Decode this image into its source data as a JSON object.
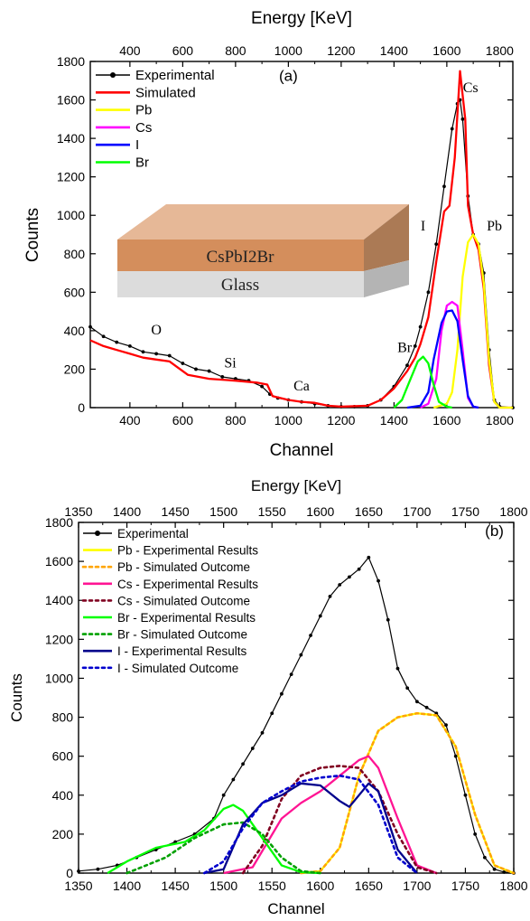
{
  "chart_data": [
    {
      "panel": "(a)",
      "type": "line",
      "xlabel": "Channel",
      "ylabel": "Counts",
      "x2label": "Energy [KeV]",
      "xlim": [
        250,
        1850
      ],
      "ylim": [
        0,
        1800
      ],
      "x2lim": [
        250,
        1850
      ],
      "xticks": [
        400,
        600,
        800,
        1000,
        1200,
        1400,
        1600,
        1800
      ],
      "yticks": [
        0,
        200,
        400,
        600,
        800,
        1000,
        1200,
        1400,
        1600,
        1800
      ],
      "x2ticks": [
        400,
        600,
        800,
        1000,
        1200,
        1400,
        1600,
        1800
      ],
      "legend_position": "top-left",
      "series": [
        {
          "name": "Experimental",
          "color": "#000000",
          "style": "line-markers",
          "x": [
            250,
            300,
            350,
            400,
            450,
            500,
            550,
            600,
            650,
            700,
            750,
            800,
            850,
            900,
            930,
            960,
            1000,
            1050,
            1100,
            1150,
            1200,
            1250,
            1300,
            1350,
            1400,
            1450,
            1480,
            1500,
            1530,
            1560,
            1590,
            1620,
            1640,
            1650,
            1660,
            1680,
            1700,
            1720,
            1740,
            1760,
            1780,
            1800,
            1850
          ],
          "y": [
            420,
            370,
            340,
            320,
            290,
            280,
            270,
            230,
            200,
            190,
            160,
            150,
            140,
            110,
            70,
            50,
            40,
            30,
            20,
            10,
            5,
            5,
            10,
            40,
            110,
            220,
            320,
            420,
            600,
            850,
            1150,
            1450,
            1580,
            1600,
            1500,
            1100,
            900,
            850,
            700,
            300,
            40,
            5,
            0
          ]
        },
        {
          "name": "Simulated",
          "color": "#ff0000",
          "style": "line",
          "x": [
            250,
            300,
            350,
            400,
            450,
            500,
            550,
            580,
            620,
            700,
            800,
            880,
            920,
            940,
            1000,
            1050,
            1100,
            1150,
            1200,
            1300,
            1350,
            1400,
            1450,
            1480,
            1500,
            1530,
            1560,
            1590,
            1610,
            1630,
            1650,
            1670,
            1680,
            1700,
            1720,
            1740,
            1760,
            1780,
            1800,
            1850
          ],
          "y": [
            350,
            320,
            300,
            280,
            260,
            250,
            240,
            210,
            170,
            150,
            140,
            130,
            120,
            60,
            40,
            30,
            25,
            10,
            5,
            10,
            40,
            100,
            190,
            260,
            330,
            470,
            760,
            1020,
            1050,
            1300,
            1750,
            1500,
            1050,
            900,
            820,
            620,
            220,
            30,
            0,
            0
          ]
        },
        {
          "name": "Pb",
          "color": "#ffff00",
          "style": "line",
          "x": [
            1550,
            1600,
            1620,
            1640,
            1660,
            1680,
            1700,
            1720,
            1740,
            1760,
            1780,
            1800,
            1850
          ],
          "y": [
            0,
            20,
            80,
            300,
            680,
            860,
            900,
            850,
            650,
            250,
            30,
            0,
            0
          ]
        },
        {
          "name": "Cs",
          "color": "#ff00ff",
          "style": "line",
          "x": [
            1500,
            1530,
            1560,
            1580,
            1600,
            1620,
            1640,
            1660,
            1680,
            1700,
            1720
          ],
          "y": [
            0,
            20,
            150,
            400,
            530,
            550,
            530,
            300,
            50,
            5,
            0
          ]
        },
        {
          "name": "I",
          "color": "#0000ff",
          "style": "line",
          "x": [
            1450,
            1500,
            1530,
            1550,
            1580,
            1600,
            1620,
            1640,
            1660,
            1680,
            1700,
            1720
          ],
          "y": [
            0,
            10,
            80,
            250,
            440,
            500,
            505,
            450,
            250,
            60,
            5,
            0
          ]
        },
        {
          "name": "Br",
          "color": "#00ff00",
          "style": "line",
          "x": [
            1400,
            1430,
            1460,
            1490,
            1510,
            1530,
            1550,
            1570,
            1600,
            1620
          ],
          "y": [
            0,
            40,
            140,
            240,
            265,
            230,
            120,
            30,
            5,
            0
          ]
        }
      ],
      "annotations": [
        {
          "text": "(a)",
          "x": 1000,
          "y": 1700
        },
        {
          "text": "Cs",
          "x": 1690,
          "y": 1640
        },
        {
          "text": "I",
          "x": 1510,
          "y": 920
        },
        {
          "text": "Pb",
          "x": 1780,
          "y": 920
        },
        {
          "text": "Br",
          "x": 1440,
          "y": 290
        },
        {
          "text": "O",
          "x": 500,
          "y": 380
        },
        {
          "text": "Si",
          "x": 780,
          "y": 210
        },
        {
          "text": "Ca",
          "x": 1050,
          "y": 90
        }
      ],
      "inset": {
        "top_layer": "CsPbI2Br",
        "bottom_layer": "Glass"
      }
    },
    {
      "panel": "(b)",
      "type": "line",
      "xlabel": "Channel",
      "ylabel": "Counts",
      "x2label": "Energy [KeV]",
      "xlim": [
        1350,
        1800
      ],
      "ylim": [
        0,
        1800
      ],
      "x2lim": [
        1350,
        1800
      ],
      "xticks": [
        1350,
        1400,
        1450,
        1500,
        1550,
        1600,
        1650,
        1700,
        1750,
        1800
      ],
      "yticks": [
        0,
        200,
        400,
        600,
        800,
        1000,
        1200,
        1400,
        1600,
        1800
      ],
      "x2ticks": [
        1350,
        1400,
        1450,
        1500,
        1550,
        1600,
        1650,
        1700,
        1750,
        1800
      ],
      "legend_position": "top-left",
      "series": [
        {
          "name": "Experimental",
          "color": "#000000",
          "style": "line-markers",
          "x": [
            1350,
            1370,
            1390,
            1410,
            1430,
            1450,
            1470,
            1490,
            1500,
            1510,
            1520,
            1530,
            1540,
            1550,
            1560,
            1570,
            1580,
            1590,
            1600,
            1610,
            1620,
            1630,
            1640,
            1650,
            1660,
            1670,
            1680,
            1690,
            1700,
            1710,
            1720,
            1730,
            1740,
            1750,
            1760,
            1770,
            1780,
            1790,
            1800
          ],
          "y": [
            10,
            20,
            40,
            80,
            120,
            160,
            200,
            280,
            400,
            480,
            560,
            640,
            720,
            820,
            920,
            1020,
            1120,
            1220,
            1320,
            1420,
            1480,
            1520,
            1560,
            1620,
            1500,
            1300,
            1050,
            950,
            880,
            850,
            820,
            760,
            600,
            400,
            200,
            80,
            20,
            5,
            0
          ]
        },
        {
          "name": "Pb - Experimental Results",
          "color": "#ffff00",
          "style": "line",
          "x": [
            1580,
            1600,
            1620,
            1640,
            1660,
            1680,
            1700,
            1720,
            1740,
            1760,
            1780,
            1800
          ],
          "y": [
            0,
            10,
            130,
            500,
            730,
            800,
            820,
            810,
            650,
            300,
            40,
            0
          ]
        },
        {
          "name": "Pb - Simulated Outcome",
          "color": "#ffa500",
          "style": "dotted",
          "x": [
            1580,
            1600,
            1620,
            1640,
            1660,
            1680,
            1700,
            1720,
            1740,
            1760,
            1780,
            1800
          ],
          "y": [
            0,
            10,
            130,
            500,
            730,
            800,
            820,
            810,
            650,
            300,
            40,
            0
          ]
        },
        {
          "name": "Cs - Experimental Results",
          "color": "#ff1493",
          "style": "line",
          "x": [
            1500,
            1530,
            1560,
            1580,
            1600,
            1620,
            1640,
            1650,
            1660,
            1680,
            1700,
            1720
          ],
          "y": [
            0,
            30,
            280,
            360,
            420,
            500,
            580,
            600,
            540,
            280,
            40,
            0
          ]
        },
        {
          "name": "Cs - Simulated Outcome",
          "color": "#800020",
          "style": "dotted",
          "x": [
            1520,
            1540,
            1560,
            1580,
            1600,
            1620,
            1640,
            1660,
            1680,
            1700,
            1720
          ],
          "y": [
            0,
            140,
            380,
            500,
            540,
            550,
            540,
            420,
            200,
            30,
            0
          ]
        },
        {
          "name": "Br - Experimental Results",
          "color": "#00ff00",
          "style": "line",
          "x": [
            1380,
            1400,
            1430,
            1460,
            1480,
            1500,
            1510,
            1520,
            1540,
            1560,
            1580,
            1600
          ],
          "y": [
            0,
            60,
            130,
            160,
            220,
            330,
            350,
            320,
            180,
            40,
            5,
            0
          ]
        },
        {
          "name": "Br - Simulated Outcome",
          "color": "#00a000",
          "style": "dotted",
          "x": [
            1400,
            1440,
            1470,
            1500,
            1520,
            1540,
            1560,
            1580,
            1600
          ],
          "y": [
            0,
            80,
            180,
            250,
            260,
            200,
            80,
            10,
            0
          ]
        },
        {
          "name": "I - Experimental Results",
          "color": "#00008b",
          "style": "line",
          "x": [
            1480,
            1500,
            1520,
            1540,
            1560,
            1580,
            1600,
            1620,
            1630,
            1640,
            1650,
            1660,
            1680,
            1700
          ],
          "y": [
            0,
            20,
            250,
            360,
            400,
            460,
            450,
            370,
            340,
            400,
            460,
            420,
            120,
            0
          ]
        },
        {
          "name": "I - Simulated Outcome",
          "color": "#0000cd",
          "style": "dotted",
          "x": [
            1480,
            1500,
            1520,
            1540,
            1560,
            1580,
            1600,
            1620,
            1640,
            1660,
            1680,
            1700
          ],
          "y": [
            0,
            60,
            230,
            360,
            420,
            470,
            490,
            500,
            480,
            350,
            80,
            0
          ]
        }
      ],
      "annotations": [
        {
          "text": "(b)",
          "x": 1780,
          "y": 1730
        }
      ]
    }
  ]
}
